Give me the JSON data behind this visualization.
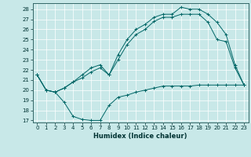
{
  "xlabel": "Humidex (Indice chaleur)",
  "bg_color": "#c8e8e8",
  "line_color": "#006666",
  "xlim": [
    -0.5,
    23.5
  ],
  "ylim": [
    16.8,
    28.6
  ],
  "yticks": [
    17,
    18,
    19,
    20,
    21,
    22,
    23,
    24,
    25,
    26,
    27,
    28
  ],
  "xticks": [
    0,
    1,
    2,
    3,
    4,
    5,
    6,
    7,
    8,
    9,
    10,
    11,
    12,
    13,
    14,
    15,
    16,
    17,
    18,
    19,
    20,
    21,
    22,
    23
  ],
  "line1_x": [
    0,
    1,
    2,
    3,
    4,
    5,
    6,
    7,
    8,
    9,
    10,
    11,
    12,
    13,
    14,
    15,
    16,
    17,
    18,
    19,
    20,
    21,
    22,
    23
  ],
  "line1_y": [
    21.5,
    20.0,
    19.8,
    18.8,
    17.4,
    17.1,
    17.0,
    17.0,
    18.5,
    19.3,
    19.5,
    19.8,
    20.0,
    20.2,
    20.4,
    20.4,
    20.4,
    20.4,
    20.5,
    20.5,
    20.5,
    20.5,
    20.5,
    20.5
  ],
  "line2_x": [
    0,
    1,
    2,
    3,
    4,
    5,
    6,
    7,
    8,
    9,
    10,
    11,
    12,
    13,
    14,
    15,
    16,
    17,
    18,
    19,
    20,
    21,
    22,
    23
  ],
  "line2_y": [
    21.5,
    20.0,
    19.8,
    20.2,
    20.8,
    21.2,
    21.8,
    22.2,
    21.5,
    23.0,
    24.5,
    25.5,
    26.0,
    26.8,
    27.2,
    27.2,
    27.5,
    27.5,
    27.5,
    26.7,
    25.0,
    24.8,
    22.2,
    20.5
  ],
  "line3_x": [
    0,
    1,
    2,
    3,
    4,
    5,
    6,
    7,
    8,
    9,
    10,
    11,
    12,
    13,
    14,
    15,
    16,
    17,
    18,
    19,
    20,
    21,
    22,
    23
  ],
  "line3_y": [
    21.5,
    20.0,
    19.8,
    20.2,
    20.8,
    21.5,
    22.2,
    22.5,
    21.5,
    23.5,
    25.0,
    26.0,
    26.5,
    27.2,
    27.5,
    27.5,
    28.2,
    28.0,
    28.0,
    27.5,
    26.7,
    25.5,
    22.5,
    20.5
  ]
}
